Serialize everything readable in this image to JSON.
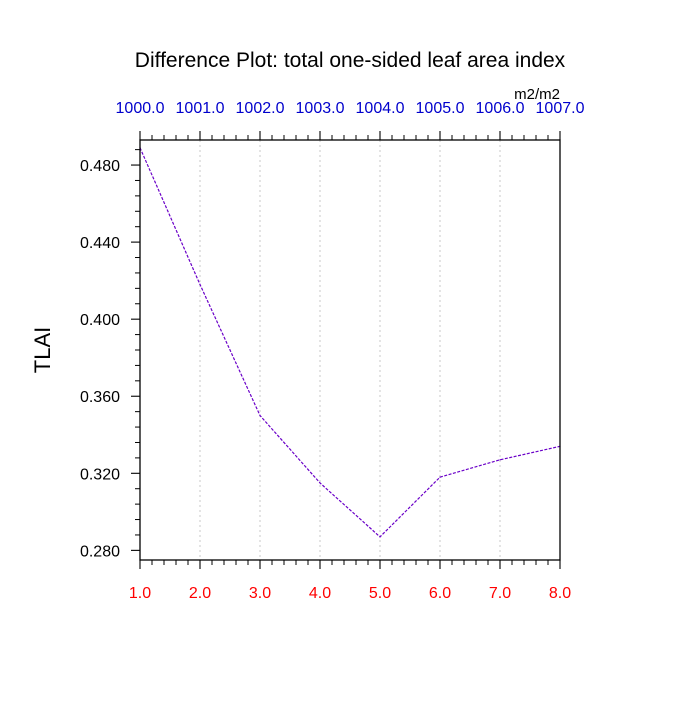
{
  "chart_data": {
    "type": "line",
    "title": "Difference Plot: total one-sided leaf area index",
    "ylabel": "TLAI",
    "units_label": "m2/m2",
    "x": [
      1.0,
      2.0,
      3.0,
      4.0,
      5.0,
      6.0,
      7.0,
      8.0
    ],
    "series": [
      {
        "values": [
          0.489,
          0.418,
          0.35,
          0.315,
          0.287,
          0.318,
          0.327,
          0.334
        ]
      }
    ],
    "xlim": [
      1.0,
      8.0
    ],
    "ylim": [
      0.275,
      0.493
    ],
    "x_ticks_bottom": [
      1.0,
      2.0,
      3.0,
      4.0,
      5.0,
      6.0,
      7.0,
      8.0
    ],
    "x_tick_labels_bottom": [
      "1.0",
      "2.0",
      "3.0",
      "4.0",
      "5.0",
      "6.0",
      "7.0",
      "8.0"
    ],
    "x_ticks_top": [
      1.0,
      2.0,
      3.0,
      4.0,
      5.0,
      6.0,
      7.0,
      8.0
    ],
    "x_tick_labels_top": [
      "1000.0",
      "1001.0",
      "1002.0",
      "1003.0",
      "1004.0",
      "1005.0",
      "1006.0",
      "1007.0"
    ],
    "y_ticks": [
      0.28,
      0.32,
      0.36,
      0.4,
      0.44,
      0.48
    ],
    "y_tick_labels": [
      "0.280",
      "0.320",
      "0.360",
      "0.400",
      "0.440",
      "0.480"
    ],
    "grid": "vertical-dotted",
    "colors": {
      "line": "#6a00c8",
      "bottom_tick_labels": "#ff0000",
      "top_tick_labels": "#0000cc",
      "grid": "#c8c8c8",
      "axes": "#000000",
      "text": "#000000"
    }
  }
}
